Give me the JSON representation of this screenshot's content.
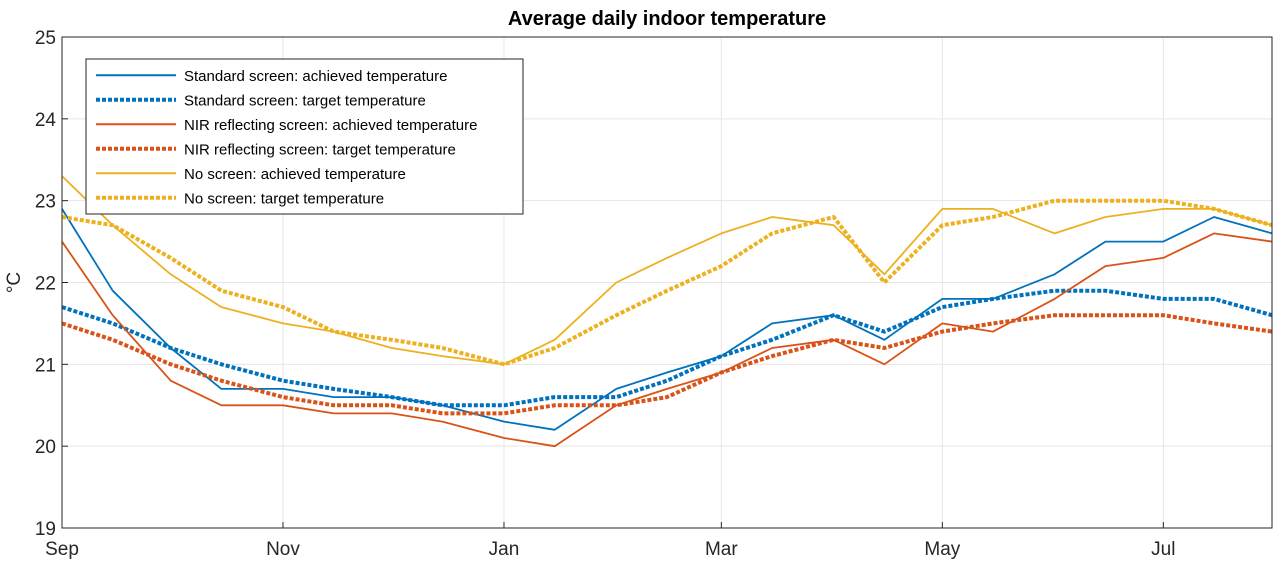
{
  "chart_data": {
    "type": "line",
    "title": "Average daily indoor temperature",
    "xlabel": "",
    "ylabel": "°C",
    "x_ticks": [
      {
        "date": "2019-09-01",
        "label": "Sep"
      },
      {
        "date": "2019-11-01",
        "label": "Nov"
      },
      {
        "date": "2020-01-01",
        "label": "Jan"
      },
      {
        "date": "2020-03-01",
        "label": "Mar"
      },
      {
        "date": "2020-05-01",
        "label": "May"
      },
      {
        "date": "2020-07-01",
        "label": "Jul"
      }
    ],
    "xlim": [
      "2019-09-01",
      "2020-07-31"
    ],
    "ylim": [
      19,
      25
    ],
    "y_ticks": [
      19,
      20,
      21,
      22,
      23,
      24,
      25
    ],
    "grid": true,
    "legend_position": "top-left",
    "x": [
      "2019-09-01",
      "2019-09-15",
      "2019-10-01",
      "2019-10-15",
      "2019-11-01",
      "2019-11-15",
      "2019-12-01",
      "2019-12-15",
      "2020-01-01",
      "2020-01-15",
      "2020-02-01",
      "2020-02-15",
      "2020-03-01",
      "2020-03-15",
      "2020-04-01",
      "2020-04-15",
      "2020-05-01",
      "2020-05-15",
      "2020-06-01",
      "2020-06-15",
      "2020-07-01",
      "2020-07-15",
      "2020-07-31"
    ],
    "series": [
      {
        "name": "Standard screen: achieved temperature",
        "color": "#0072BD",
        "dash": "solid",
        "values": [
          22.9,
          21.9,
          21.2,
          20.7,
          20.7,
          20.6,
          20.6,
          20.5,
          20.3,
          20.2,
          20.7,
          20.9,
          21.1,
          21.5,
          21.6,
          21.3,
          21.8,
          21.8,
          22.1,
          22.5,
          22.5,
          22.8,
          22.6
        ]
      },
      {
        "name": "Standard screen: target temperature",
        "color": "#0072BD",
        "dash": "dotted",
        "values": [
          21.7,
          21.5,
          21.2,
          21.0,
          20.8,
          20.7,
          20.6,
          20.5,
          20.5,
          20.6,
          20.6,
          20.8,
          21.1,
          21.3,
          21.6,
          21.4,
          21.7,
          21.8,
          21.9,
          21.9,
          21.8,
          21.8,
          21.6
        ]
      },
      {
        "name": "NIR reflecting screen: achieved temperature",
        "color": "#D95319",
        "dash": "solid",
        "values": [
          22.5,
          21.6,
          20.8,
          20.5,
          20.5,
          20.4,
          20.4,
          20.3,
          20.1,
          20.0,
          20.5,
          20.7,
          20.9,
          21.2,
          21.3,
          21.0,
          21.5,
          21.4,
          21.8,
          22.2,
          22.3,
          22.6,
          22.5
        ]
      },
      {
        "name": "NIR reflecting screen: target temperature",
        "color": "#D95319",
        "dash": "dotted",
        "values": [
          21.5,
          21.3,
          21.0,
          20.8,
          20.6,
          20.5,
          20.5,
          20.4,
          20.4,
          20.5,
          20.5,
          20.6,
          20.9,
          21.1,
          21.3,
          21.2,
          21.4,
          21.5,
          21.6,
          21.6,
          21.6,
          21.5,
          21.4
        ]
      },
      {
        "name": "No screen: achieved temperature",
        "color": "#EDB120",
        "dash": "solid",
        "values": [
          23.3,
          22.7,
          22.1,
          21.7,
          21.5,
          21.4,
          21.2,
          21.1,
          21.0,
          21.3,
          22.0,
          22.3,
          22.6,
          22.8,
          22.7,
          22.1,
          22.9,
          22.9,
          22.6,
          22.8,
          22.9,
          22.9,
          22.7
        ]
      },
      {
        "name": "No screen: target temperature",
        "color": "#EDB120",
        "dash": "dotted",
        "values": [
          22.8,
          22.7,
          22.3,
          21.9,
          21.7,
          21.4,
          21.3,
          21.2,
          21.0,
          21.2,
          21.6,
          21.9,
          22.2,
          22.6,
          22.8,
          22.0,
          22.7,
          22.8,
          23.0,
          23.0,
          23.0,
          22.9,
          22.7
        ]
      }
    ]
  }
}
